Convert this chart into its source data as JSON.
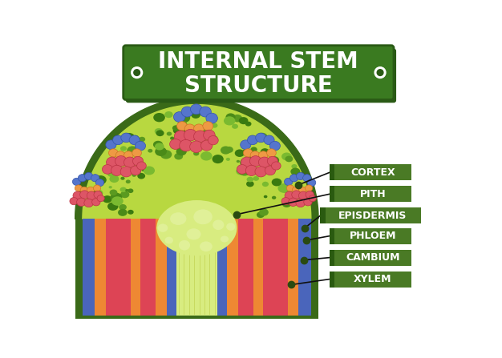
{
  "title": "INTERNAL STEM\nSTRUCTURE",
  "title_bg": "#3a7a20",
  "title_bg_dark": "#2a5a15",
  "title_text_color": "#ffffff",
  "labels": [
    "CORTEX",
    "PITH",
    "EPISDERMIS",
    "PHLOEM",
    "CAMBIUM",
    "XYLEM"
  ],
  "label_bg": "#4a7a25",
  "label_bg_dark": "#2a5a10",
  "label_text_color": "#ffffff",
  "colors": {
    "outer_green_light": "#8aba45",
    "outer_green_border": "#3a6a18",
    "cortex_bg": "#b8d840",
    "cortex_dots_dark": "#5a9a20",
    "cortex_dots_med": "#7aba30",
    "pith_center": "#d8ec80",
    "pith_bubble_light": "#e0f098",
    "blue_phloem": "#5575cc",
    "blue_phloem_dark": "#3355aa",
    "red_xylem": "#dd5566",
    "red_xylem_dark": "#bb3344",
    "orange_cambium": "#ee9944",
    "orange_cambium_dark": "#cc7722",
    "stripe_blue": "#4a65bb",
    "stripe_red": "#dd4455",
    "stripe_orange": "#ee8833",
    "stripe_pale": "#d8ea78",
    "stripe_pale2": "#c8da60",
    "green_inner_bg": "#c8dc60"
  },
  "fig_bg": "#ffffff"
}
